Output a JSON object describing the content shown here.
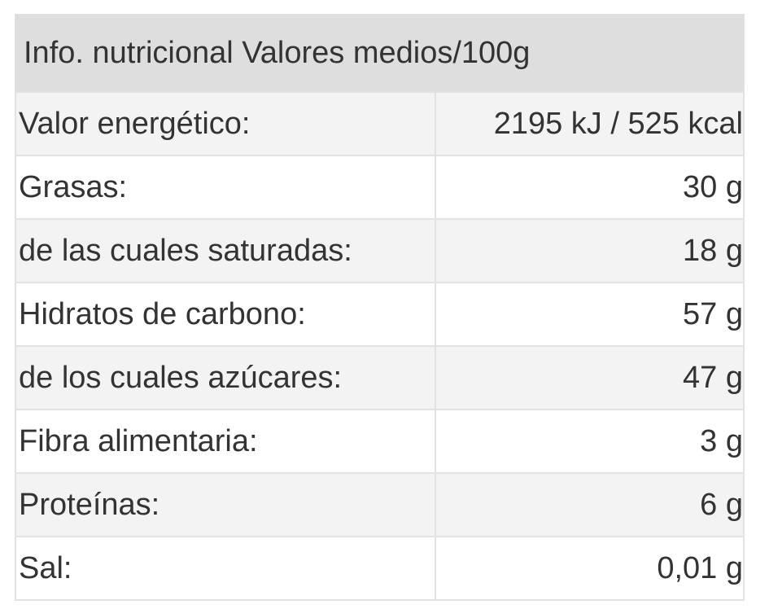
{
  "header": {
    "title": "Info. nutricional Valores medios/100g"
  },
  "table": {
    "rows": [
      [
        "Valor energético:",
        "2195 kJ / 525 kcal"
      ],
      [
        "Grasas:",
        "30 g"
      ],
      [
        "de las cuales saturadas:",
        "18 g"
      ],
      [
        "Hidratos de carbono:",
        "57 g"
      ],
      [
        "de los cuales azúcares:",
        "47 g"
      ],
      [
        "Fibra alimentaria:",
        "3 g"
      ],
      [
        "Proteínas:",
        "6 g"
      ],
      [
        "Sal:",
        "0,01 g"
      ]
    ]
  }
}
